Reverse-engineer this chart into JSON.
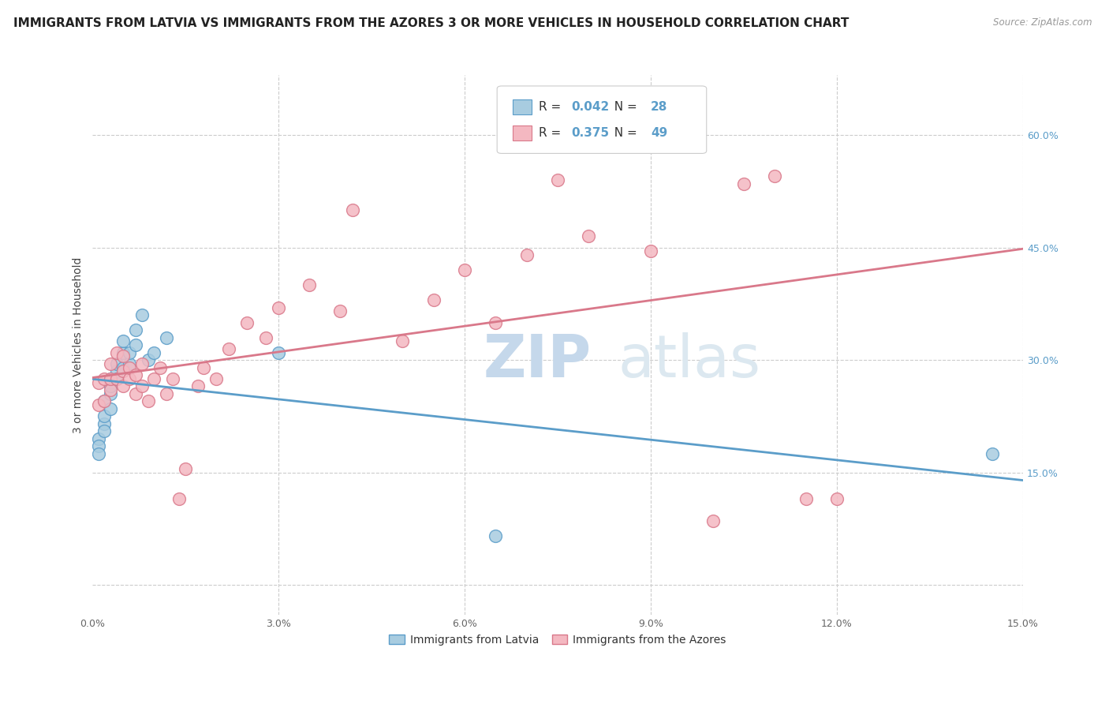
{
  "title": "IMMIGRANTS FROM LATVIA VS IMMIGRANTS FROM THE AZORES 3 OR MORE VEHICLES IN HOUSEHOLD CORRELATION CHART",
  "source": "Source: ZipAtlas.com",
  "ylabel": "3 or more Vehicles in Household",
  "xlim": [
    0.0,
    0.15
  ],
  "ylim": [
    -0.04,
    0.68
  ],
  "xticks": [
    0.0,
    0.03,
    0.06,
    0.09,
    0.12,
    0.15
  ],
  "xticklabels": [
    "0.0%",
    "3.0%",
    "6.0%",
    "9.0%",
    "12.0%",
    "15.0%"
  ],
  "yticks": [
    0.0,
    0.15,
    0.3,
    0.45,
    0.6
  ],
  "yticklabels_right": [
    "",
    "15.0%",
    "30.0%",
    "45.0%",
    "60.0%"
  ],
  "legend1_R": "0.042",
  "legend1_N": "28",
  "legend2_R": "0.375",
  "legend2_N": "49",
  "legend_bottom_label1": "Immigrants from Latvia",
  "legend_bottom_label2": "Immigrants from the Azores",
  "color_latvia": "#a8cce0",
  "color_azores": "#f4b8c1",
  "edge_latvia": "#5b9dc9",
  "edge_azores": "#d9788a",
  "line_color_latvia": "#5b9dc9",
  "line_color_azores": "#d9788a",
  "background_color": "#ffffff",
  "grid_color": "#cccccc",
  "title_fontsize": 11,
  "axis_label_fontsize": 10,
  "tick_fontsize": 9,
  "legend_fontsize": 11,
  "latvia_x": [
    0.001,
    0.001,
    0.001,
    0.002,
    0.002,
    0.002,
    0.002,
    0.003,
    0.003,
    0.003,
    0.003,
    0.004,
    0.004,
    0.004,
    0.005,
    0.005,
    0.005,
    0.006,
    0.006,
    0.007,
    0.007,
    0.008,
    0.009,
    0.01,
    0.012,
    0.03,
    0.065,
    0.145
  ],
  "latvia_y": [
    0.195,
    0.185,
    0.175,
    0.215,
    0.205,
    0.225,
    0.245,
    0.235,
    0.255,
    0.265,
    0.275,
    0.285,
    0.275,
    0.295,
    0.29,
    0.31,
    0.325,
    0.295,
    0.31,
    0.32,
    0.34,
    0.36,
    0.3,
    0.31,
    0.33,
    0.31,
    0.065,
    0.175
  ],
  "azores_x": [
    0.001,
    0.001,
    0.002,
    0.002,
    0.003,
    0.003,
    0.003,
    0.004,
    0.004,
    0.005,
    0.005,
    0.005,
    0.006,
    0.006,
    0.007,
    0.007,
    0.008,
    0.008,
    0.009,
    0.01,
    0.011,
    0.012,
    0.013,
    0.014,
    0.015,
    0.017,
    0.018,
    0.02,
    0.022,
    0.025,
    0.028,
    0.03,
    0.035,
    0.04,
    0.042,
    0.05,
    0.055,
    0.06,
    0.065,
    0.07,
    0.075,
    0.08,
    0.09,
    0.095,
    0.1,
    0.105,
    0.11,
    0.115,
    0.12
  ],
  "azores_y": [
    0.24,
    0.27,
    0.245,
    0.275,
    0.26,
    0.275,
    0.295,
    0.275,
    0.31,
    0.265,
    0.285,
    0.305,
    0.275,
    0.29,
    0.255,
    0.28,
    0.265,
    0.295,
    0.245,
    0.275,
    0.29,
    0.255,
    0.275,
    0.115,
    0.155,
    0.265,
    0.29,
    0.275,
    0.315,
    0.35,
    0.33,
    0.37,
    0.4,
    0.365,
    0.5,
    0.325,
    0.38,
    0.42,
    0.35,
    0.44,
    0.54,
    0.465,
    0.445,
    0.62,
    0.085,
    0.535,
    0.545,
    0.115,
    0.115
  ]
}
